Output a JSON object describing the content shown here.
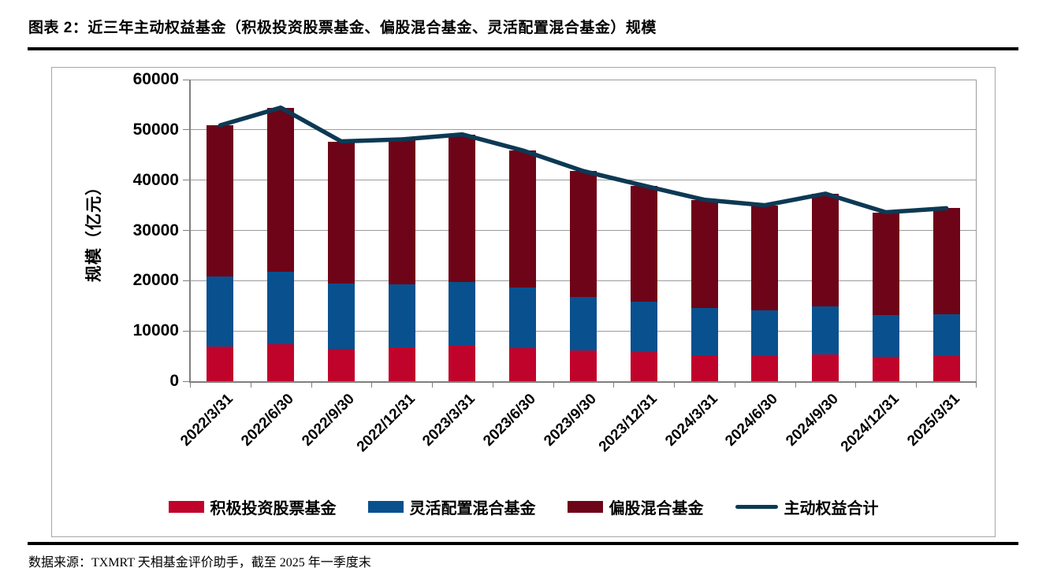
{
  "page": {
    "title": "图表 2：近三年主动权益基金（积极投资股票基金、偏股混合基金、灵活配置混合基金）规模",
    "source_note": "数据来源：TXMRT 天相基金评价助手，截至 2025 年一季度末"
  },
  "chart_data": {
    "type": "bar",
    "subtype": "stacked-bar-with-line",
    "title": "",
    "xlabel": "",
    "ylabel": "规模（亿元）",
    "ylim": [
      0,
      60000
    ],
    "yticks": [
      0,
      10000,
      20000,
      30000,
      40000,
      50000,
      60000
    ],
    "grid": true,
    "legend_position": "bottom",
    "categories": [
      "2022/3/31",
      "2022/6/30",
      "2022/9/30",
      "2022/12/31",
      "2023/3/31",
      "2023/6/30",
      "2023/9/30",
      "2023/12/31",
      "2024/3/31",
      "2024/6/30",
      "2024/9/30",
      "2024/12/31",
      "2025/3/31"
    ],
    "series": [
      {
        "name": "积极投资股票基金",
        "type": "bar",
        "color": "#C0032B",
        "values": [
          6900,
          7400,
          6400,
          6700,
          7100,
          6600,
          6100,
          5800,
          5200,
          5000,
          5300,
          4800,
          5000
        ]
      },
      {
        "name": "灵活配置混合基金",
        "type": "bar",
        "color": "#09508E",
        "values": [
          14000,
          14300,
          13100,
          12600,
          12700,
          12100,
          10700,
          10100,
          9400,
          9100,
          9600,
          8400,
          8300
        ]
      },
      {
        "name": "偏股混合基金",
        "type": "bar",
        "color": "#6E0418",
        "values": [
          30000,
          32700,
          28200,
          28800,
          29300,
          27200,
          25000,
          23000,
          21500,
          20900,
          22400,
          20400,
          21100
        ]
      },
      {
        "name": "主动权益合计",
        "type": "line",
        "color": "#0D3954",
        "values": [
          50900,
          54400,
          47700,
          48100,
          49100,
          45900,
          41800,
          38900,
          36100,
          35000,
          37300,
          33600,
          34400
        ]
      }
    ]
  }
}
